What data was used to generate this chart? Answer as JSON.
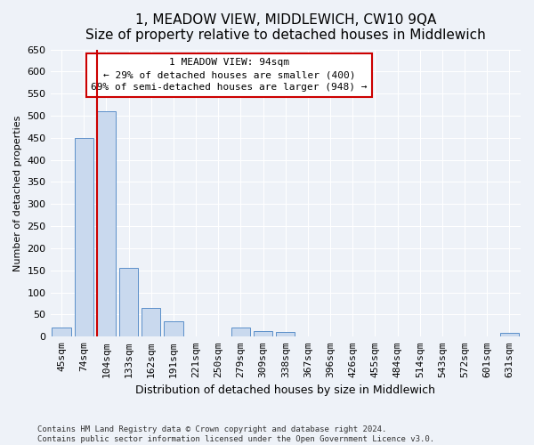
{
  "title": "1, MEADOW VIEW, MIDDLEWICH, CW10 9QA",
  "subtitle": "Size of property relative to detached houses in Middlewich",
  "xlabel": "Distribution of detached houses by size in Middlewich",
  "ylabel": "Number of detached properties",
  "bar_labels": [
    "45sqm",
    "74sqm",
    "104sqm",
    "133sqm",
    "162sqm",
    "191sqm",
    "221sqm",
    "250sqm",
    "279sqm",
    "309sqm",
    "338sqm",
    "367sqm",
    "396sqm",
    "426sqm",
    "455sqm",
    "484sqm",
    "514sqm",
    "543sqm",
    "572sqm",
    "601sqm",
    "631sqm"
  ],
  "bar_values": [
    20,
    450,
    510,
    155,
    65,
    35,
    0,
    0,
    20,
    12,
    10,
    0,
    0,
    0,
    0,
    0,
    0,
    0,
    0,
    0,
    8
  ],
  "bar_color": "#c9d9ee",
  "bar_edge_color": "#5b8fc9",
  "annotation_text": "1 MEADOW VIEW: 94sqm\n← 29% of detached houses are smaller (400)\n69% of semi-detached houses are larger (948) →",
  "annotation_box_color": "#ffffff",
  "annotation_box_edge": "#cc0000",
  "ylim": [
    0,
    650
  ],
  "yticks": [
    0,
    50,
    100,
    150,
    200,
    250,
    300,
    350,
    400,
    450,
    500,
    550,
    600,
    650
  ],
  "line_color": "#cc0000",
  "line_x_index": 2,
  "footer": "Contains HM Land Registry data © Crown copyright and database right 2024.\nContains public sector information licensed under the Open Government Licence v3.0.",
  "bg_color": "#eef2f8",
  "plot_bg_color": "#eef2f8",
  "grid_color": "#ffffff",
  "title_fontsize": 11,
  "subtitle_fontsize": 9,
  "ylabel_fontsize": 8,
  "xlabel_fontsize": 9,
  "tick_fontsize": 8,
  "annot_fontsize": 8
}
